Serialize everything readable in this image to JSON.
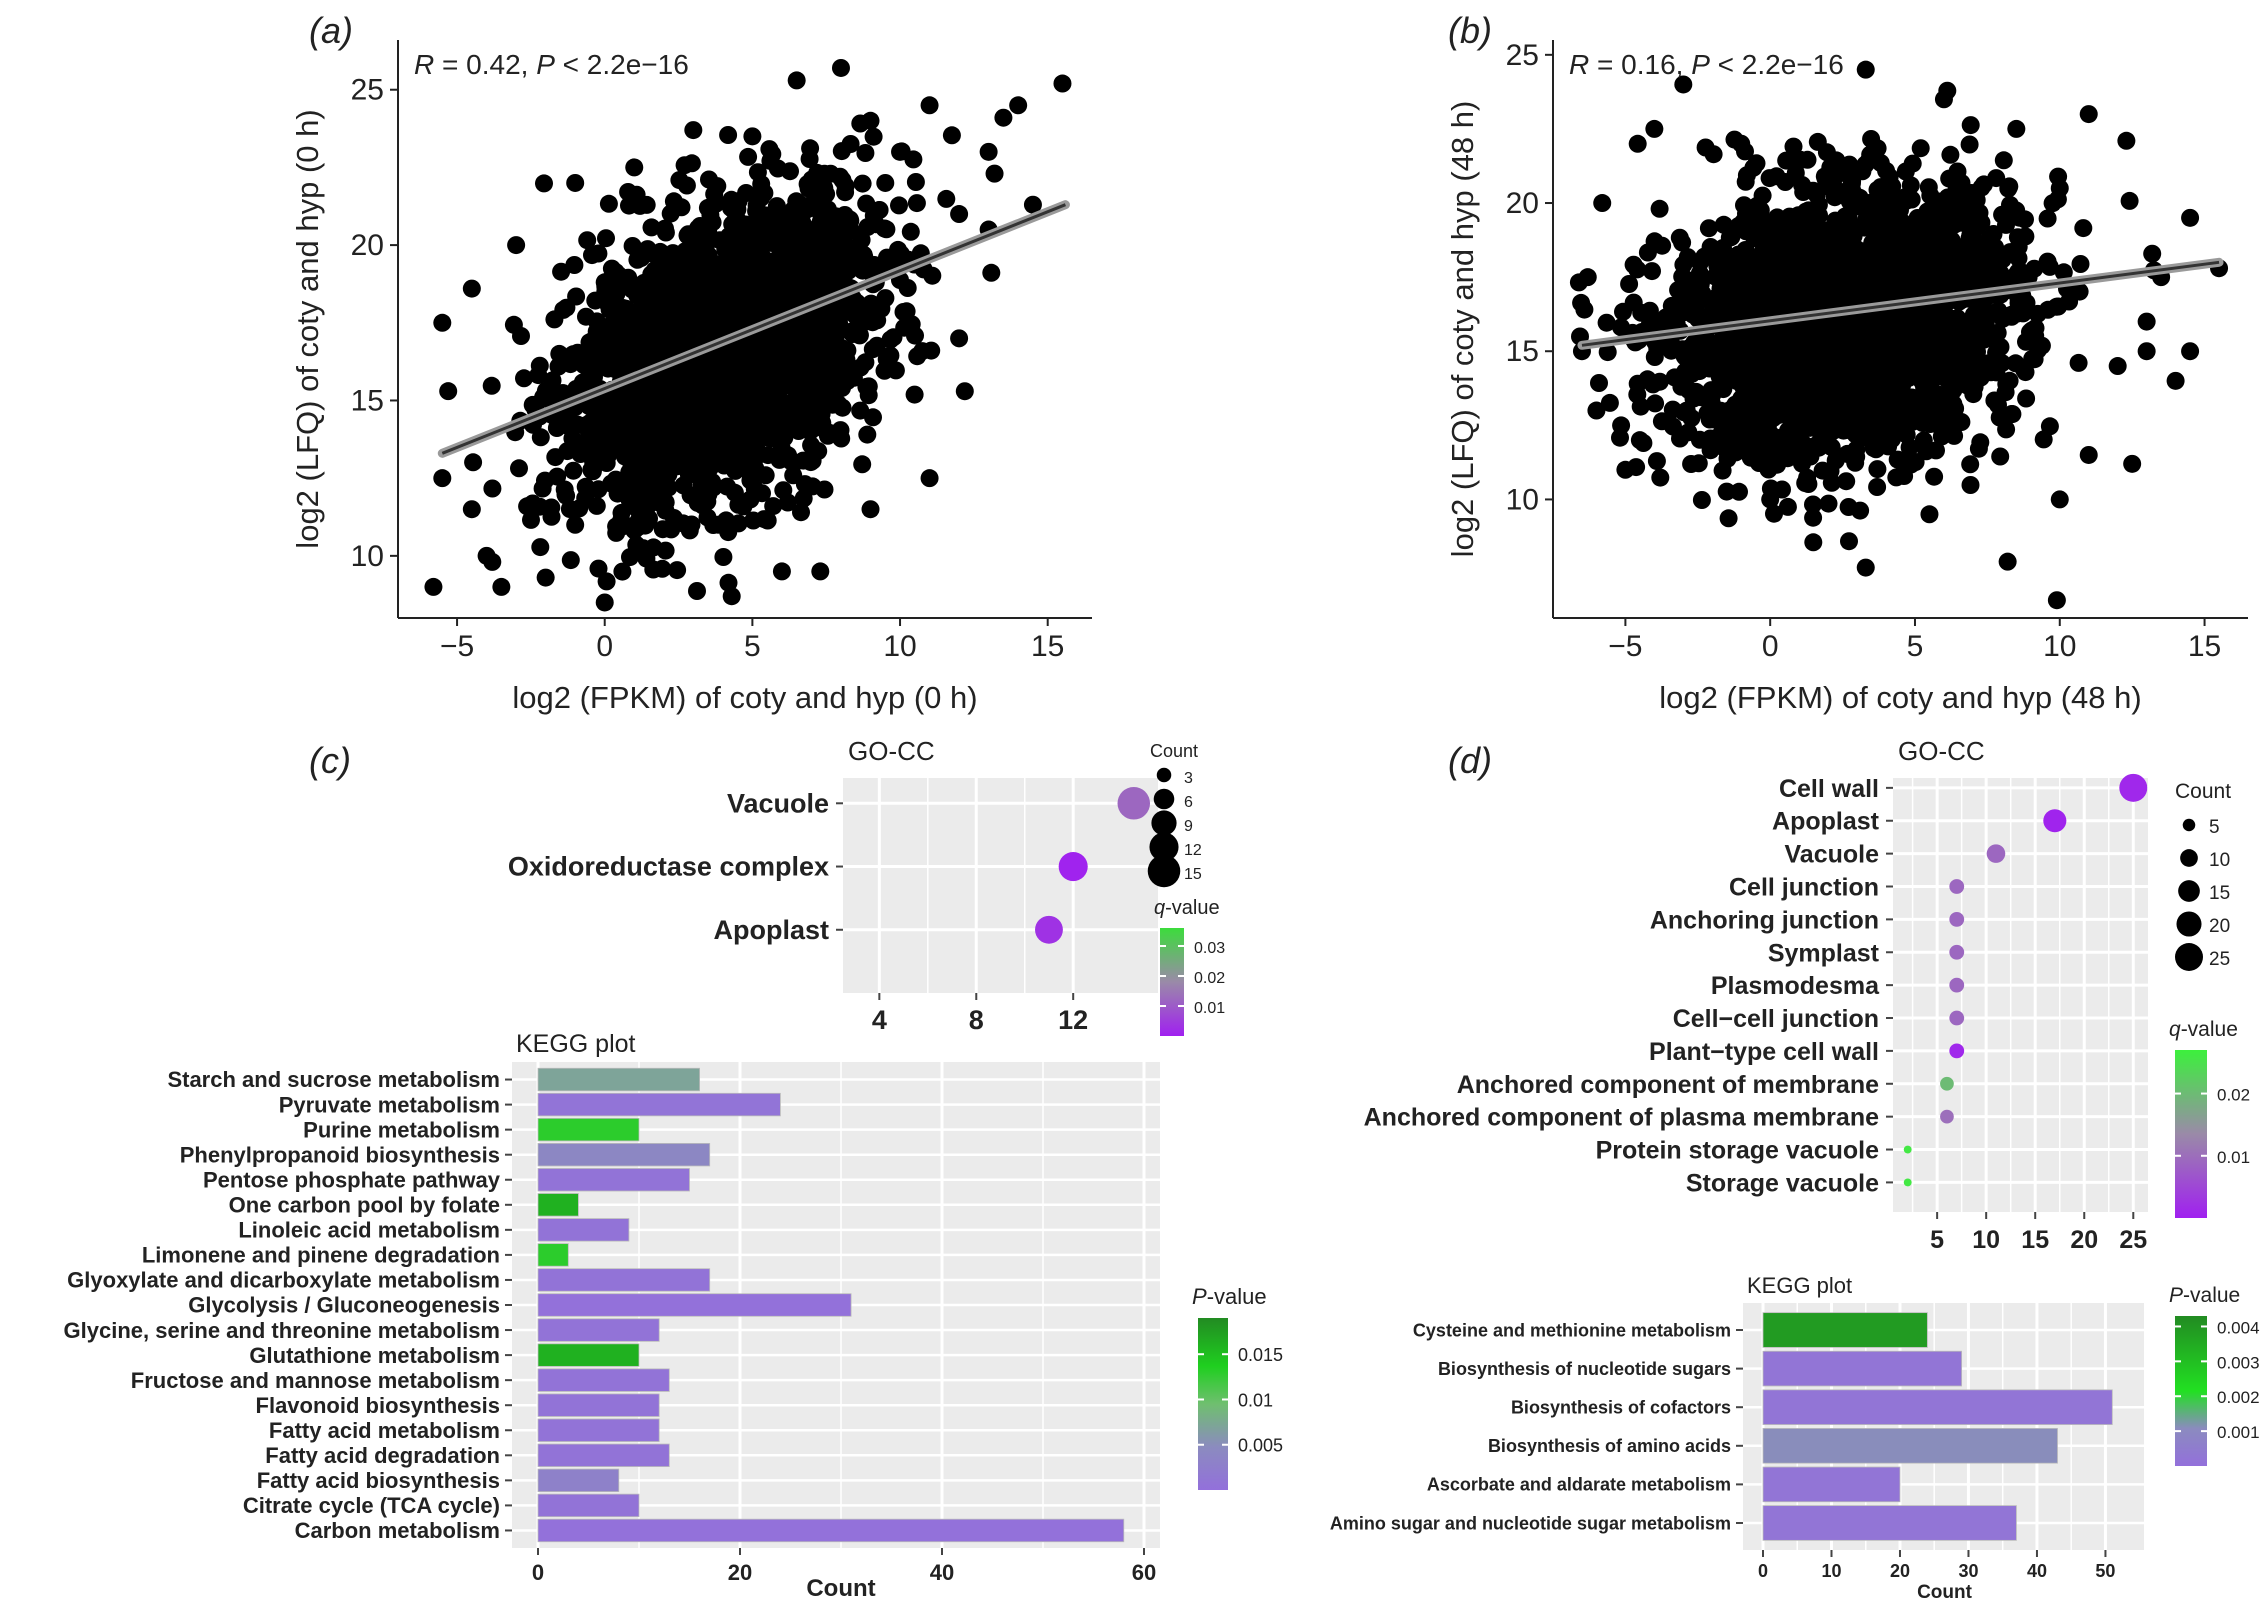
{
  "panels": [
    {
      "id": "a",
      "label": "(a)"
    },
    {
      "id": "b",
      "label": "(b)"
    },
    {
      "id": "c",
      "label": "(c)"
    },
    {
      "id": "d",
      "label": "(d)"
    }
  ],
  "chart_data": [
    {
      "id": "a",
      "type": "scatter",
      "title": "",
      "annotation": {
        "r_label": "R",
        "r_value": " = 0.42, ",
        "p_label": "P",
        "p_value": " < 2.2e−16"
      },
      "xlabel": "log2 (FPKM) of coty and hyp (0 h)",
      "ylabel": "log2 (LFQ) of coty and hyp (0 h)",
      "xlim": [
        -7,
        16.5
      ],
      "ylim": [
        8,
        26.6
      ],
      "xticks": [
        -5,
        0,
        5,
        10,
        15
      ],
      "yticks": [
        10,
        15,
        20,
        25
      ],
      "cloud": {
        "x_mean": 4,
        "x_sd": 2.6,
        "y_mean": 16.5,
        "y_sd": 2.2,
        "slope": 0.42
      },
      "regression": {
        "x": [
          -5.5,
          15.6
        ],
        "y": [
          13.3,
          21.3
        ]
      },
      "outliers": [
        [
          -5.5,
          12.5
        ],
        [
          -5.3,
          15.3
        ],
        [
          -4.5,
          11.5
        ],
        [
          -5.8,
          9
        ],
        [
          -3.5,
          9
        ],
        [
          -2,
          9.3
        ],
        [
          -4,
          10
        ],
        [
          -1,
          11
        ],
        [
          0,
          8.5
        ],
        [
          4.3,
          8.7
        ],
        [
          6,
          9.5
        ],
        [
          7.3,
          9.5
        ],
        [
          9,
          11.5
        ],
        [
          11,
          12.5
        ],
        [
          12,
          17
        ],
        [
          13,
          20.5
        ],
        [
          13.2,
          22.3
        ],
        [
          14,
          24.5
        ],
        [
          14.5,
          21.3
        ],
        [
          15.5,
          25.2
        ],
        [
          13.5,
          24.1
        ],
        [
          13,
          23
        ],
        [
          11,
          24.5
        ],
        [
          9,
          24
        ],
        [
          8,
          25.7
        ],
        [
          6.5,
          25.3
        ],
        [
          3,
          23.7
        ],
        [
          -1,
          22
        ],
        [
          -3,
          20
        ],
        [
          -4.5,
          18.6
        ],
        [
          -5.5,
          17.5
        ],
        [
          1,
          22.5
        ],
        [
          5,
          23.5
        ],
        [
          10,
          23
        ],
        [
          12,
          21
        ],
        [
          9.5,
          22
        ]
      ]
    },
    {
      "id": "b",
      "type": "scatter",
      "title": "",
      "annotation": {
        "r_label": "R",
        "r_value": " = 0.16, ",
        "p_label": "P",
        "p_value": " < 2.2e−16"
      },
      "xlabel": "log2 (FPKM) of coty and hyp (48 h)",
      "ylabel": "log2 (LFQ) of coty and hyp (48 h)",
      "xlim": [
        -7.5,
        16.5
      ],
      "ylim": [
        6,
        25.5
      ],
      "xticks": [
        -5,
        0,
        5,
        10,
        15
      ],
      "yticks": [
        10,
        15,
        20,
        25
      ],
      "cloud": {
        "x_mean": 2.5,
        "x_sd": 3,
        "y_mean": 16,
        "y_sd": 2.2,
        "slope": 0.16
      },
      "regression": {
        "x": [
          -6.5,
          15.5
        ],
        "y": [
          15.2,
          18.0
        ]
      },
      "outliers": [
        [
          -5.8,
          20
        ],
        [
          -6.3,
          17.5
        ],
        [
          -6.5,
          15
        ],
        [
          -6,
          13
        ],
        [
          -5,
          11
        ],
        [
          -4.5,
          12
        ],
        [
          0,
          10
        ],
        [
          3.3,
          7.7
        ],
        [
          5.5,
          9.5
        ],
        [
          8.2,
          7.9
        ],
        [
          9.9,
          6.6
        ],
        [
          10,
          10
        ],
        [
          11,
          11.5
        ],
        [
          12.5,
          11.2
        ],
        [
          12,
          14.5
        ],
        [
          13,
          15
        ],
        [
          14,
          14
        ],
        [
          14.5,
          15
        ],
        [
          15.5,
          17.8
        ],
        [
          13,
          16
        ],
        [
          14.5,
          19.5
        ],
        [
          13.5,
          17.5
        ],
        [
          12.3,
          22.1
        ],
        [
          11,
          23
        ],
        [
          10,
          20.5
        ],
        [
          8.5,
          22.5
        ],
        [
          6,
          23.5
        ],
        [
          3.3,
          24.5
        ],
        [
          -1,
          22
        ],
        [
          -4,
          22.5
        ],
        [
          -3,
          24
        ]
      ]
    },
    {
      "id": "c-go",
      "type": "scatter",
      "title": "GO-CC",
      "categories": [
        "Vacuole",
        "Oxidoreductase complex",
        "Apoplast"
      ],
      "x": [
        14.5,
        12,
        11
      ],
      "count": [
        15,
        12,
        11
      ],
      "qvalue": [
        0.012,
        0.0005,
        0.003
      ],
      "xlim": [
        2.5,
        15.5
      ],
      "xticks": [
        4,
        8,
        12
      ],
      "size_legend": {
        "title": "Count",
        "values": [
          3,
          6,
          9,
          12,
          15
        ]
      },
      "color_legend": {
        "title_italic": "q",
        "title_rest": "-value",
        "ticks": [
          0.03,
          0.02,
          0.01
        ],
        "range": [
          0.0,
          0.036
        ]
      }
    },
    {
      "id": "c-kegg",
      "type": "bar",
      "title": "KEGG plot",
      "categories": [
        "Starch and sucrose metabolism",
        "Pyruvate metabolism",
        "Purine metabolism",
        "Phenylpropanoid biosynthesis",
        "Pentose phosphate pathway",
        "One carbon pool by folate",
        "Linoleic acid metabolism",
        "Limonene and pinene degradation",
        "Glyoxylate and dicarboxylate metabolism",
        "Glycolysis / Gluconeogenesis",
        "Glycine, serine and threonine metabolism",
        "Glutathione metabolism",
        "Fructose and mannose metabolism",
        "Flavonoid biosynthesis",
        "Fatty acid metabolism",
        "Fatty acid degradation",
        "Fatty acid biosynthesis",
        "Citrate cycle (TCA cycle)",
        "Carbon metabolism"
      ],
      "values": [
        16,
        24,
        10,
        17,
        15,
        4,
        9,
        3,
        17,
        31,
        12,
        10,
        13,
        12,
        12,
        13,
        8,
        10,
        58
      ],
      "pvalue": [
        0.007,
        0.0007,
        0.013,
        0.004,
        0.0006,
        0.016,
        0.0006,
        0.013,
        0.0006,
        0.0002,
        0.0006,
        0.016,
        0.0006,
        0.0006,
        0.0006,
        0.0006,
        0.003,
        0.0006,
        0.0001
      ],
      "xlabel": "Count",
      "xlim": [
        0,
        60
      ],
      "xticks": [
        0,
        20,
        40,
        60
      ],
      "color_legend": {
        "title_italic": "P",
        "title_rest": "-value",
        "ticks": [
          0.015,
          0.01,
          0.005
        ],
        "range": [
          0.0,
          0.019
        ]
      }
    },
    {
      "id": "d-go",
      "type": "scatter",
      "title": "GO-CC",
      "categories": [
        "Cell wall",
        "Apoplast",
        "Vacuole",
        "Cell junction",
        "Anchoring junction",
        "Symplast",
        "Plasmodesma",
        "Cell−cell junction",
        "Plant−type cell wall",
        "Anchored component of membrane",
        "Anchored component of plasma membrane",
        "Protein storage vacuole",
        "Storage vacuole"
      ],
      "x": [
        25,
        17,
        11,
        7,
        7,
        7,
        7,
        7,
        7,
        6,
        6,
        2,
        2
      ],
      "count": [
        25,
        17,
        11,
        7,
        7,
        7,
        7,
        7,
        7,
        6,
        6,
        2,
        2
      ],
      "qvalue": [
        0.001,
        0.0005,
        0.009,
        0.009,
        0.009,
        0.009,
        0.009,
        0.009,
        0.001,
        0.02,
        0.01,
        0.026,
        0.026
      ],
      "xlim": [
        0.5,
        26.5
      ],
      "xticks": [
        5,
        10,
        15,
        20,
        25
      ],
      "size_legend": {
        "title": "Count",
        "values": [
          5,
          10,
          15,
          20,
          25
        ]
      },
      "color_legend": {
        "title_italic": "q",
        "title_rest": "-value",
        "ticks": [
          0.02,
          0.01
        ],
        "range": [
          0.0,
          0.027
        ]
      }
    },
    {
      "id": "d-kegg",
      "type": "bar",
      "title": "KEGG plot",
      "categories": [
        "Cysteine and methionine metabolism",
        "Biosynthesis of nucleotide sugars",
        "Biosynthesis of cofactors",
        "Biosynthesis of amino acids",
        "Ascorbate and aldarate metabolism",
        "Amino sugar and nucleotide sugar metabolism"
      ],
      "values": [
        24,
        29,
        51,
        43,
        20,
        37
      ],
      "pvalue": [
        0.0039,
        0.0002,
        0.0002,
        0.0011,
        0.0002,
        0.0002
      ],
      "xlabel": "Count",
      "xlim": [
        0,
        53
      ],
      "xticks": [
        0,
        10,
        20,
        30,
        40,
        50
      ],
      "color_legend": {
        "title_italic": "P",
        "title_rest": "-value",
        "ticks": [
          0.004,
          0.003,
          0.002,
          0.001
        ],
        "range": [
          0.0,
          0.0043
        ]
      }
    }
  ]
}
